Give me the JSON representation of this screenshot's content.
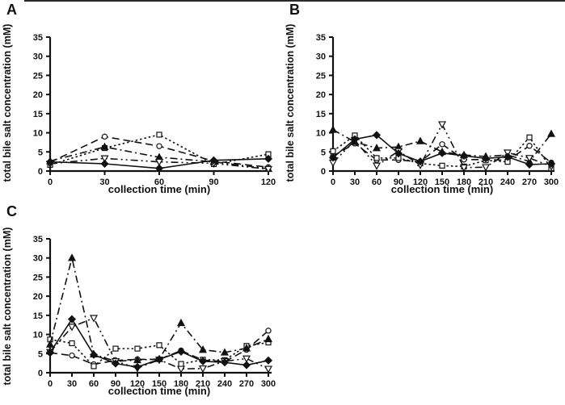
{
  "figure": {
    "background": "#ffffff",
    "ink": "#111111",
    "top_border_color": "#2a2a2a"
  },
  "chart_data": [
    {
      "id": "a",
      "panel_label": "A",
      "type": "line",
      "title": "",
      "xlabel": "collection time (min)",
      "ylabel": "total bile salt concentration (mM)",
      "xlim": [
        0,
        120
      ],
      "ylim": [
        0,
        35
      ],
      "x": [
        0,
        30,
        60,
        90,
        120
      ],
      "xticks": [
        0,
        30,
        60,
        90,
        120
      ],
      "yticks": [
        0,
        5,
        10,
        15,
        20,
        25,
        30,
        35
      ],
      "grid": false,
      "legend": "none",
      "series": [
        {
          "name": "open-circle",
          "marker": "circle",
          "fill": "open",
          "line": "long-dash",
          "values": [
            2.3,
            9.0,
            6.5,
            2.6,
            1.0
          ]
        },
        {
          "name": "open-square",
          "marker": "square",
          "fill": "open",
          "line": "dotted",
          "values": [
            1.6,
            6.0,
            9.5,
            1.8,
            4.4
          ]
        },
        {
          "name": "filled-triangle",
          "marker": "triangle-up",
          "fill": "filled",
          "line": "dash-dot",
          "values": [
            2.6,
            6.3,
            3.6,
            2.4,
            0.6
          ]
        },
        {
          "name": "open-inverted-triangle",
          "marker": "triangle-down",
          "fill": "open",
          "line": "dash-dot-dot",
          "values": [
            1.9,
            3.3,
            2.4,
            2.0,
            0.5
          ]
        },
        {
          "name": "filled-diamond",
          "marker": "diamond",
          "fill": "filled",
          "line": "solid",
          "values": [
            2.4,
            1.9,
            0.7,
            2.8,
            3.2
          ]
        }
      ]
    },
    {
      "id": "b",
      "panel_label": "B",
      "type": "line",
      "title": "",
      "xlabel": "collection time (min)",
      "ylabel": "total bile salt concentration (mM)",
      "xlim": [
        0,
        300
      ],
      "ylim": [
        0,
        35
      ],
      "x": [
        0,
        30,
        60,
        90,
        120,
        150,
        180,
        210,
        240,
        270,
        300
      ],
      "xticks": [
        0,
        30,
        60,
        90,
        120,
        150,
        180,
        210,
        240,
        270,
        300
      ],
      "yticks": [
        0,
        5,
        10,
        15,
        20,
        25,
        30,
        35
      ],
      "grid": false,
      "legend": "none",
      "series": [
        {
          "name": "open-circle",
          "marker": "circle",
          "fill": "open",
          "line": "long-dash",
          "values": [
            3.9,
            7.2,
            2.9,
            2.9,
            2.4,
            7.0,
            3.0,
            3.0,
            2.8,
            6.6,
            2.2
          ]
        },
        {
          "name": "open-square",
          "marker": "square",
          "fill": "open",
          "line": "dotted",
          "values": [
            5.2,
            9.3,
            3.4,
            3.4,
            2.0,
            1.4,
            1.2,
            2.8,
            2.4,
            8.8,
            0.7
          ]
        },
        {
          "name": "filled-triangle",
          "marker": "triangle-up",
          "fill": "filled",
          "line": "dash-dot",
          "values": [
            10.8,
            7.6,
            6.0,
            6.3,
            7.8,
            5.0,
            4.2,
            3.8,
            4.2,
            2.5,
            9.7
          ]
        },
        {
          "name": "open-inverted-triangle",
          "marker": "triangle-down",
          "fill": "open",
          "line": "dash-dot-dot",
          "values": [
            2.2,
            8.0,
            1.4,
            5.2,
            1.6,
            12.2,
            0.9,
            1.0,
            4.8,
            3.4,
            1.2
          ]
        },
        {
          "name": "filled-diamond",
          "marker": "diamond",
          "fill": "filled",
          "line": "solid",
          "values": [
            3.5,
            8.3,
            9.4,
            4.6,
            2.5,
            4.7,
            4.0,
            3.3,
            3.7,
            1.7,
            1.9
          ]
        }
      ]
    },
    {
      "id": "c",
      "panel_label": "C",
      "type": "line",
      "title": "",
      "xlabel": "collection time (min)",
      "ylabel": "total bile salt concentration (mM)",
      "xlim": [
        0,
        300
      ],
      "ylim": [
        0,
        35
      ],
      "x": [
        0,
        30,
        60,
        90,
        120,
        150,
        180,
        210,
        240,
        270,
        300
      ],
      "xticks": [
        0,
        30,
        60,
        90,
        120,
        150,
        180,
        210,
        240,
        270,
        300
      ],
      "yticks": [
        0,
        5,
        10,
        15,
        20,
        25,
        30,
        35
      ],
      "grid": false,
      "legend": "none",
      "series": [
        {
          "name": "open-circle",
          "marker": "circle",
          "fill": "open",
          "line": "long-dash",
          "values": [
            5.2,
            4.5,
            2.2,
            3.2,
            3.5,
            3.5,
            5.8,
            3.3,
            2.9,
            6.0,
            11.0
          ]
        },
        {
          "name": "open-square",
          "marker": "square",
          "fill": "open",
          "line": "dotted",
          "values": [
            8.7,
            7.7,
            1.7,
            6.3,
            6.3,
            7.2,
            2.3,
            3.4,
            3.3,
            7.0,
            7.9
          ]
        },
        {
          "name": "filled-triangle",
          "marker": "triangle-up",
          "fill": "filled",
          "line": "dash-dot",
          "values": [
            7.4,
            30.0,
            4.8,
            3.0,
            3.3,
            3.6,
            13.0,
            6.0,
            5.3,
            6.4,
            8.8
          ]
        },
        {
          "name": "open-inverted-triangle",
          "marker": "triangle-down",
          "fill": "open",
          "line": "dash-dot-dot",
          "values": [
            5.4,
            12.0,
            14.3,
            3.0,
            1.2,
            3.4,
            1.0,
            1.1,
            3.0,
            3.7,
            1.0
          ]
        },
        {
          "name": "filled-diamond",
          "marker": "diamond",
          "fill": "filled",
          "line": "solid",
          "values": [
            5.3,
            14.0,
            4.7,
            2.4,
            1.5,
            3.5,
            5.5,
            3.0,
            2.7,
            2.0,
            3.2
          ]
        }
      ]
    }
  ]
}
